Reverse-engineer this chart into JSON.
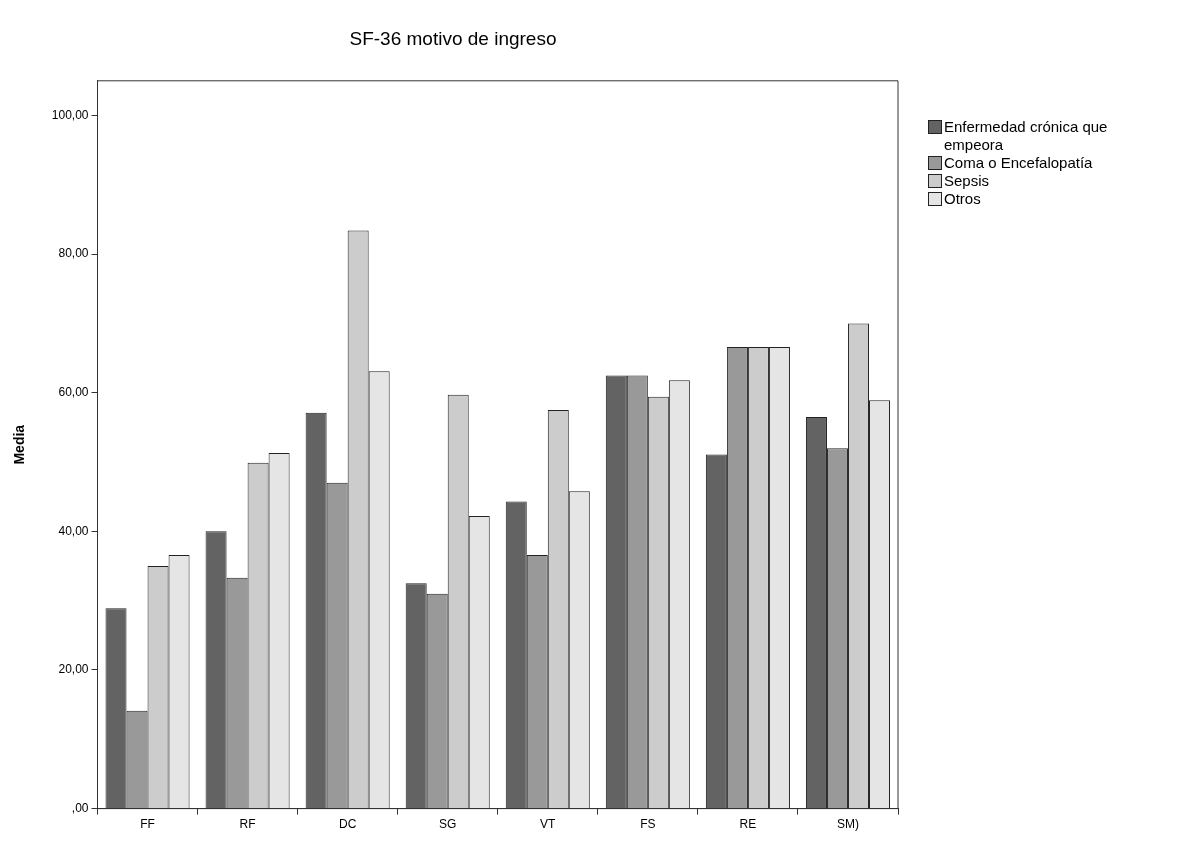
{
  "chart_data": {
    "type": "bar",
    "title": "SF-36 motivo de ingreso",
    "ylabel": "Media",
    "categories": [
      "FF",
      "RF",
      "DC",
      "SG",
      "VT",
      "FS",
      "RE",
      "SM)"
    ],
    "series": [
      {
        "name": "Enfermedad crónica que empeora",
        "color": "#636363",
        "values": [
          28.9,
          40.0,
          57.1,
          32.5,
          44.3,
          62.5,
          51.1,
          56.5
        ]
      },
      {
        "name": "Coma o Encefalopatía",
        "color": "#999999",
        "values": [
          14.1,
          33.3,
          47.0,
          31.0,
          36.6,
          62.5,
          66.6,
          52.0
        ]
      },
      {
        "name": "Sepsis",
        "color": "#cccccc",
        "values": [
          35.0,
          49.9,
          83.4,
          59.7,
          57.5,
          59.4,
          66.6,
          70.0
        ]
      },
      {
        "name": "Otros",
        "color": "#e5e5e5",
        "values": [
          36.6,
          51.3,
          63.1,
          42.2,
          45.8,
          61.8,
          66.6,
          58.9
        ]
      }
    ],
    "ylim": [
      0,
      105
    ],
    "yticks": [
      {
        "value": 0,
        "label": ",00"
      },
      {
        "value": 20,
        "label": "20,00"
      },
      {
        "value": 40,
        "label": "40,00"
      },
      {
        "value": 60,
        "label": "60,00"
      },
      {
        "value": 80,
        "label": "80,00"
      },
      {
        "value": 100,
        "label": "100,00"
      }
    ],
    "grid": false,
    "legend": "top right"
  }
}
